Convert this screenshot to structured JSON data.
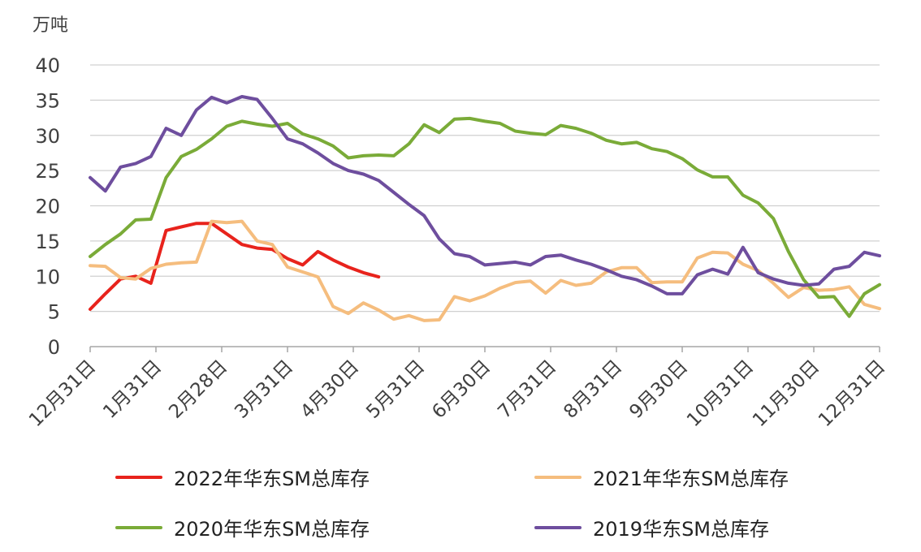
{
  "chart_data": {
    "type": "line",
    "ylabel": "万吨",
    "ylim": [
      0,
      40
    ],
    "yticks": [
      0,
      5,
      10,
      15,
      20,
      25,
      30,
      35,
      40
    ],
    "grid": true,
    "legend_position": "bottom",
    "x_tick_labels": [
      "12月31日",
      "1月31日",
      "2月28日",
      "3月31日",
      "4月30日",
      "5月31日",
      "6月30日",
      "7月31日",
      "8月31日",
      "9月30日",
      "10月31日",
      "11月30日",
      "12月31日"
    ],
    "x_count": 53,
    "series": [
      {
        "name": "2022年华东SM总库存",
        "color": "#e8231c",
        "values": [
          5.3,
          7.5,
          9.6,
          10.0,
          9.0,
          16.5,
          17.0,
          17.5,
          17.5,
          16.0,
          14.5,
          14.0,
          13.8,
          12.5,
          11.6,
          13.5,
          12.3,
          11.3,
          10.5,
          9.9
        ]
      },
      {
        "name": "2021年华东SM总库存",
        "color": "#f5bd7e",
        "values": [
          11.5,
          11.4,
          9.8,
          9.6,
          11.1,
          11.7,
          11.9,
          12.0,
          17.8,
          17.6,
          17.8,
          15.0,
          14.5,
          11.3,
          10.6,
          9.9,
          5.7,
          4.7,
          6.2,
          5.2,
          3.9,
          4.4,
          3.7,
          3.8,
          7.1,
          6.5,
          7.2,
          8.3,
          9.1,
          9.3,
          7.6,
          9.4,
          8.7,
          9.0,
          10.6,
          11.2,
          11.2,
          9.1,
          9.2,
          9.2,
          12.6,
          13.4,
          13.3,
          11.7,
          10.8,
          9.0,
          7.0,
          8.4,
          8.0,
          8.1,
          8.5,
          6.0,
          5.4
        ]
      },
      {
        "name": "2020年华东SM总库存",
        "color": "#7aab38",
        "values": [
          12.8,
          14.5,
          16.0,
          18.0,
          18.1,
          24.0,
          27.0,
          28.0,
          29.5,
          31.3,
          32.0,
          31.6,
          31.3,
          31.7,
          30.2,
          29.5,
          28.5,
          26.8,
          27.1,
          27.2,
          27.1,
          28.8,
          31.5,
          30.4,
          32.3,
          32.4,
          32.0,
          31.7,
          30.6,
          30.3,
          30.1,
          31.4,
          31.0,
          30.3,
          29.3,
          28.8,
          29.0,
          28.1,
          27.7,
          26.7,
          25.1,
          24.1,
          24.1,
          21.5,
          20.4,
          18.2,
          13.5,
          9.5,
          7.0,
          7.1,
          4.3,
          7.5,
          8.8
        ]
      },
      {
        "name": "2019华东SM总库存",
        "color": "#6e4e9e",
        "values": [
          24.0,
          22.1,
          25.5,
          26.0,
          27.0,
          31.0,
          30.0,
          33.6,
          35.4,
          34.6,
          35.5,
          35.1,
          32.4,
          29.5,
          28.8,
          27.5,
          26.0,
          25.0,
          24.5,
          23.6,
          21.9,
          20.2,
          18.6,
          15.3,
          13.2,
          12.8,
          11.6,
          11.8,
          12.0,
          11.6,
          12.8,
          13.0,
          12.3,
          11.7,
          10.9,
          10.0,
          9.5,
          8.6,
          7.5,
          7.5,
          10.2,
          11.0,
          10.3,
          14.1,
          10.5,
          9.6,
          9.0,
          8.7,
          8.9,
          11.0,
          11.4,
          13.4,
          12.9
        ]
      }
    ]
  }
}
